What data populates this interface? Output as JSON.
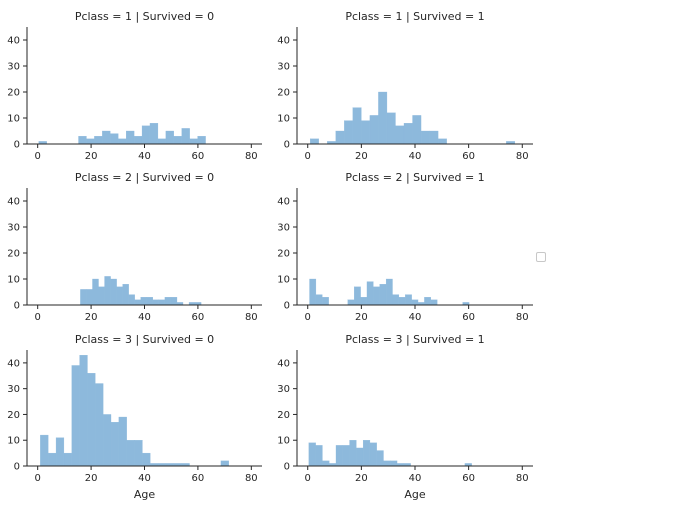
{
  "chart_data": [
    {
      "type": "bar",
      "title": "Pclass = 1 | Survived = 0",
      "xlabel": "",
      "ylabel": "",
      "xlim": [
        -4,
        84
      ],
      "ylim": [
        0,
        45
      ],
      "xticks": [
        "0",
        "20",
        "40",
        "60",
        "80"
      ],
      "yticks": [
        "0",
        "10",
        "20",
        "30",
        "40"
      ],
      "bin_edges": [
        0.42,
        3.39,
        6.37,
        9.34,
        12.31,
        15.29,
        18.26,
        21.24,
        24.21,
        27.18,
        30.16,
        33.13,
        36.11,
        39.08,
        42.05,
        45.03,
        48.0,
        50.97,
        53.95,
        56.92,
        59.89,
        62.87,
        65.84,
        68.82,
        71.79
      ],
      "values": [
        1,
        0,
        0,
        0,
        0,
        3,
        2,
        3,
        5,
        4,
        2,
        5,
        3,
        7,
        8,
        2,
        5,
        3,
        6,
        2,
        3,
        0,
        0,
        0
      ],
      "grid": false
    },
    {
      "type": "bar",
      "title": "Pclass = 1 | Survived = 1",
      "xlabel": "",
      "ylabel": "",
      "xlim": [
        -4,
        84
      ],
      "ylim": [
        0,
        45
      ],
      "xticks": [
        "0",
        "20",
        "40",
        "60",
        "80"
      ],
      "yticks": [
        "0",
        "10",
        "20",
        "30",
        "40"
      ],
      "bin_edges": [
        0.92,
        4.1,
        7.28,
        10.46,
        13.64,
        16.82,
        20.0,
        23.18,
        26.36,
        29.54,
        32.72,
        35.9,
        39.08,
        42.26,
        45.44,
        48.62,
        51.8,
        54.98,
        58.16,
        61.34,
        64.52,
        67.7,
        70.88,
        74.06,
        77.24,
        80.42
      ],
      "values": [
        2,
        0,
        1,
        5,
        9,
        14,
        9,
        11,
        20,
        12,
        7,
        8,
        11,
        5,
        5,
        2,
        0,
        0,
        0,
        0,
        0,
        0,
        0,
        1,
        0
      ],
      "grid": false
    },
    {
      "type": "bar",
      "title": "Pclass = 2 | Survived = 0",
      "xlabel": "",
      "ylabel": "",
      "xlim": [
        -4,
        84
      ],
      "ylim": [
        0,
        45
      ],
      "xticks": [
        "0",
        "20",
        "40",
        "60",
        "80"
      ],
      "yticks": [
        "0",
        "10",
        "20",
        "30",
        "40"
      ],
      "bin_edges": [
        16.0,
        18.26,
        20.52,
        22.78,
        25.04,
        27.3,
        29.56,
        31.82,
        34.08,
        36.34,
        38.6,
        40.86,
        43.12,
        45.38,
        47.64,
        49.9,
        52.16,
        54.42,
        56.68,
        58.94,
        61.2,
        63.46,
        65.72,
        67.98,
        70.24
      ],
      "values": [
        6,
        6,
        10,
        7,
        11,
        10,
        7,
        8,
        4,
        2,
        3,
        3,
        2,
        2,
        3,
        3,
        1,
        0,
        1,
        1,
        0,
        0,
        0,
        0
      ],
      "grid": false
    },
    {
      "type": "bar",
      "title": "Pclass = 2 | Survived = 1",
      "xlabel": "",
      "ylabel": "",
      "xlim": [
        -4,
        84
      ],
      "ylim": [
        0,
        45
      ],
      "xticks": [
        "0",
        "20",
        "40",
        "60",
        "80"
      ],
      "yticks": [
        "0",
        "10",
        "20",
        "30",
        "40"
      ],
      "bin_edges": [
        0.67,
        3.05,
        5.43,
        7.81,
        10.19,
        12.57,
        14.95,
        17.33,
        19.71,
        22.09,
        24.47,
        26.85,
        29.23,
        31.61,
        33.99,
        36.37,
        38.75,
        41.13,
        43.51,
        45.89,
        48.27,
        50.65,
        53.03,
        55.41,
        57.79,
        60.17,
        62.55
      ],
      "values": [
        10,
        4,
        3,
        0,
        0,
        0,
        2,
        7,
        3,
        9,
        7,
        8,
        10,
        4,
        3,
        4,
        2,
        1,
        3,
        2,
        0,
        0,
        0,
        0,
        1,
        0
      ],
      "grid": false
    },
    {
      "type": "bar",
      "title": "Pclass = 3 | Survived = 0",
      "xlabel": "Age",
      "ylabel": "",
      "xlim": [
        -4,
        84
      ],
      "ylim": [
        0,
        45
      ],
      "xticks": [
        "0",
        "20",
        "40",
        "60",
        "80"
      ],
      "yticks": [
        "0",
        "10",
        "20",
        "30",
        "40"
      ],
      "bin_edges": [
        1.0,
        3.94,
        6.88,
        9.82,
        12.76,
        15.7,
        18.64,
        21.58,
        24.52,
        27.46,
        30.4,
        33.34,
        36.28,
        39.22,
        42.16,
        45.1,
        48.04,
        50.98,
        53.92,
        56.86,
        59.8,
        62.74,
        65.68,
        68.62,
        71.56,
        74.5
      ],
      "values": [
        12,
        5,
        11,
        5,
        39,
        43,
        36,
        32,
        20,
        17,
        19,
        10,
        10,
        5,
        1,
        1,
        1,
        1,
        1,
        0,
        0,
        0,
        0,
        2,
        0
      ],
      "grid": false
    },
    {
      "type": "bar",
      "title": "Pclass = 3 | Survived = 1",
      "xlabel": "Age",
      "ylabel": "",
      "xlim": [
        -4,
        84
      ],
      "ylim": [
        0,
        45
      ],
      "xticks": [
        "0",
        "20",
        "40",
        "60",
        "80"
      ],
      "yticks": [
        "0",
        "10",
        "20",
        "30",
        "40"
      ],
      "bin_edges": [
        0.42,
        2.95,
        5.48,
        8.01,
        10.54,
        13.07,
        15.6,
        18.13,
        20.66,
        23.19,
        25.72,
        28.25,
        30.78,
        33.31,
        35.84,
        38.37,
        40.9,
        43.43,
        45.96,
        48.49,
        51.02,
        53.55,
        56.08,
        58.61,
        61.14,
        63.67
      ],
      "values": [
        9,
        8,
        2,
        1,
        8,
        8,
        10,
        7,
        10,
        9,
        6,
        2,
        2,
        1,
        1,
        0,
        0,
        0,
        0,
        0,
        0,
        0,
        0,
        1,
        0
      ],
      "grid": false
    }
  ],
  "style": {
    "bar_color": "#8db9dc",
    "bar_edge_color": "#8db9dc",
    "axis_color": "#262626",
    "text_color": "#262626"
  },
  "legend": {
    "placement": "right",
    "entries": []
  }
}
